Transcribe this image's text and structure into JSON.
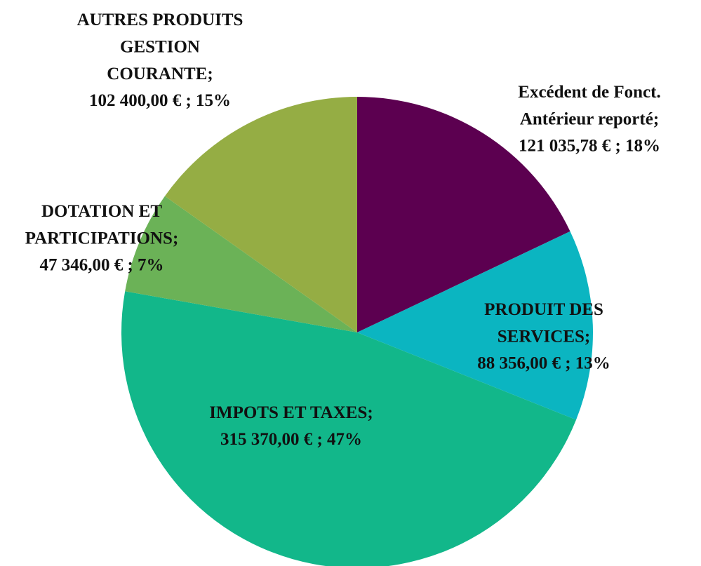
{
  "chart_data": {
    "type": "pie",
    "categories": [
      "Excédent de Fonct.\nAntérieur reporté;",
      "PRODUIT DES\nSERVICES;",
      "IMPOTS ET TAXES;",
      "DOTATION ET\nPARTICIPATIONS;",
      "AUTRES PRODUITS\nGESTION\nCOURANTE;"
    ],
    "values": [
      121035.78,
      88356,
      315370,
      47346,
      102400
    ],
    "value_labels": [
      "121 035,78 € ; 18%",
      "88 356,00 € ; 13%",
      "315 370,00 € ; 47%",
      "47 346,00 € ; 7%",
      "102 400,00 € ; 15%"
    ],
    "colors": [
      "#5c0050",
      "#0bb5c1",
      "#12b78a",
      "#6bb257",
      "#95ad44"
    ]
  }
}
